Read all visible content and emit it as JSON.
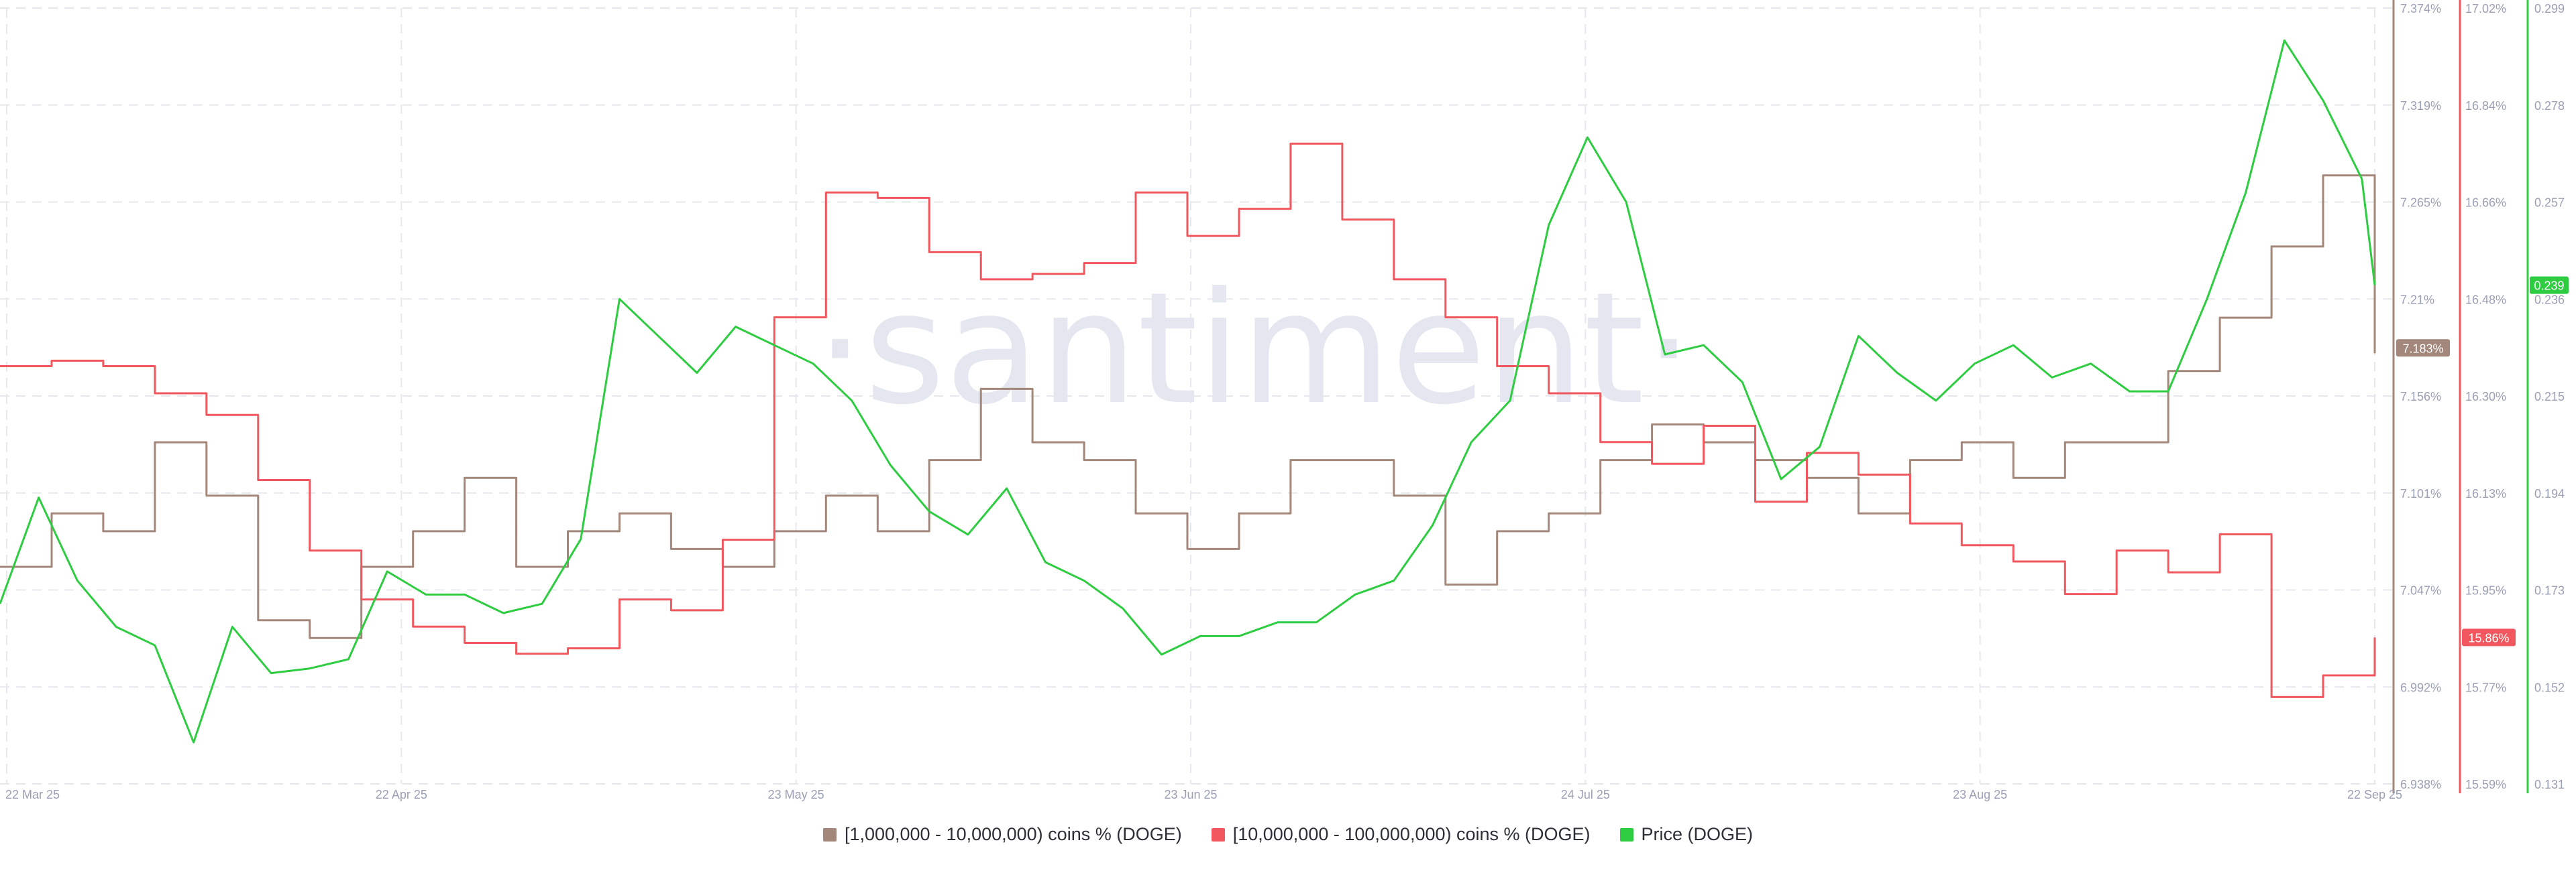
{
  "watermark": "·santiment·",
  "legend": [
    {
      "label": "[1,000,000 - 10,000,000) coins % (DOGE)",
      "color": "#a3877a"
    },
    {
      "label": "[10,000,000 - 100,000,000) coins % (DOGE)",
      "color": "#f0575e"
    },
    {
      "label": "Price (DOGE)",
      "color": "#2ecc40"
    }
  ],
  "colors": {
    "grid": "#e6e8ee",
    "axis_text": "#9a9fb3",
    "series1": "#a3877a",
    "series2": "#f0575e",
    "series3": "#2ecc40"
  },
  "chart_data": {
    "type": "line",
    "grid": true,
    "x_ticks": [
      "22 Mar 25",
      "22 Apr 25",
      "23 May 25",
      "23 Jun 25",
      "24 Jul 25",
      "23 Aug 25",
      "22 Sep 25"
    ],
    "x_range": [
      "2025-03-22",
      "2025-09-22"
    ],
    "axes": [
      {
        "id": "coins_1m_10m",
        "ticks": [
          "7.374%",
          "7.319%",
          "7.265%",
          "7.21%",
          "7.156%",
          "7.101%",
          "7.047%",
          "6.992%",
          "6.938%"
        ],
        "range": [
          6.938,
          7.374
        ],
        "current_value_label": "7.183%",
        "current_value": 7.183
      },
      {
        "id": "coins_10m_100m",
        "ticks": [
          "17.02%",
          "16.84%",
          "16.66%",
          "16.48%",
          "16.30%",
          "16.13%",
          "15.95%",
          "15.77%",
          "15.59%"
        ],
        "range": [
          15.59,
          17.02
        ],
        "current_value_label": "15.86%",
        "current_value": 15.86
      },
      {
        "id": "price",
        "ticks": [
          "0.299",
          "0.278",
          "0.257",
          "0.236",
          "0.215",
          "0.194",
          "0.173",
          "0.152",
          "0.131"
        ],
        "range": [
          0.131,
          0.299
        ],
        "current_value_label": "0.239",
        "current_value": 0.239
      }
    ],
    "series": [
      {
        "name": "[1,000,000 - 10,000,000) coins % (DOGE)",
        "axis": "coins_1m_10m",
        "step": true,
        "x": [
          "2025-03-22",
          "2025-03-26",
          "2025-03-30",
          "2025-04-03",
          "2025-04-07",
          "2025-04-11",
          "2025-04-15",
          "2025-04-19",
          "2025-04-23",
          "2025-04-27",
          "2025-05-01",
          "2025-05-05",
          "2025-05-09",
          "2025-05-13",
          "2025-05-17",
          "2025-05-21",
          "2025-05-25",
          "2025-05-29",
          "2025-06-02",
          "2025-06-06",
          "2025-06-10",
          "2025-06-14",
          "2025-06-18",
          "2025-06-22",
          "2025-06-26",
          "2025-06-30",
          "2025-07-04",
          "2025-07-08",
          "2025-07-12",
          "2025-07-16",
          "2025-07-20",
          "2025-07-24",
          "2025-07-28",
          "2025-08-01",
          "2025-08-05",
          "2025-08-09",
          "2025-08-13",
          "2025-08-17",
          "2025-08-21",
          "2025-08-25",
          "2025-08-29",
          "2025-09-02",
          "2025-09-06",
          "2025-09-10",
          "2025-09-14",
          "2025-09-18",
          "2025-09-22"
        ],
        "values": [
          7.06,
          7.09,
          7.08,
          7.13,
          7.1,
          7.03,
          7.02,
          7.06,
          7.08,
          7.11,
          7.06,
          7.08,
          7.09,
          7.07,
          7.06,
          7.08,
          7.1,
          7.08,
          7.12,
          7.16,
          7.13,
          7.12,
          7.09,
          7.07,
          7.09,
          7.12,
          7.12,
          7.1,
          7.05,
          7.08,
          7.09,
          7.12,
          7.14,
          7.13,
          7.12,
          7.11,
          7.09,
          7.12,
          7.13,
          7.11,
          7.13,
          7.13,
          7.17,
          7.2,
          7.24,
          7.28,
          7.18
        ]
      },
      {
        "name": "[10,000,000 - 100,000,000) coins % (DOGE)",
        "axis": "coins_10m_100m",
        "step": true,
        "x": [
          "2025-03-22",
          "2025-03-26",
          "2025-03-30",
          "2025-04-03",
          "2025-04-07",
          "2025-04-11",
          "2025-04-15",
          "2025-04-19",
          "2025-04-23",
          "2025-04-27",
          "2025-05-01",
          "2025-05-05",
          "2025-05-09",
          "2025-05-13",
          "2025-05-17",
          "2025-05-21",
          "2025-05-25",
          "2025-05-29",
          "2025-06-02",
          "2025-06-06",
          "2025-06-10",
          "2025-06-14",
          "2025-06-18",
          "2025-06-22",
          "2025-06-26",
          "2025-06-30",
          "2025-07-04",
          "2025-07-08",
          "2025-07-12",
          "2025-07-16",
          "2025-07-20",
          "2025-07-24",
          "2025-07-28",
          "2025-08-01",
          "2025-08-05",
          "2025-08-09",
          "2025-08-13",
          "2025-08-17",
          "2025-08-21",
          "2025-08-25",
          "2025-08-29",
          "2025-09-02",
          "2025-09-06",
          "2025-09-10",
          "2025-09-14",
          "2025-09-18",
          "2025-09-22"
        ],
        "values": [
          16.36,
          16.37,
          16.36,
          16.31,
          16.27,
          16.15,
          16.02,
          15.93,
          15.88,
          15.85,
          15.83,
          15.84,
          15.93,
          15.91,
          16.04,
          16.45,
          16.68,
          16.67,
          16.57,
          16.52,
          16.53,
          16.55,
          16.68,
          16.6,
          16.65,
          16.77,
          16.63,
          16.52,
          16.45,
          16.36,
          16.31,
          16.22,
          16.18,
          16.25,
          16.11,
          16.2,
          16.16,
          16.07,
          16.03,
          16.0,
          15.94,
          16.02,
          15.98,
          16.05,
          15.75,
          15.79,
          15.86
        ]
      },
      {
        "name": "Price (DOGE)",
        "axis": "price",
        "step": false,
        "x": [
          "2025-03-22",
          "2025-03-25",
          "2025-03-28",
          "2025-03-31",
          "2025-04-03",
          "2025-04-06",
          "2025-04-09",
          "2025-04-12",
          "2025-04-15",
          "2025-04-18",
          "2025-04-21",
          "2025-04-24",
          "2025-04-27",
          "2025-04-30",
          "2025-05-03",
          "2025-05-06",
          "2025-05-09",
          "2025-05-12",
          "2025-05-15",
          "2025-05-18",
          "2025-05-21",
          "2025-05-24",
          "2025-05-27",
          "2025-05-30",
          "2025-06-02",
          "2025-06-05",
          "2025-06-08",
          "2025-06-11",
          "2025-06-14",
          "2025-06-17",
          "2025-06-20",
          "2025-06-23",
          "2025-06-26",
          "2025-06-29",
          "2025-07-02",
          "2025-07-05",
          "2025-07-08",
          "2025-07-11",
          "2025-07-14",
          "2025-07-17",
          "2025-07-20",
          "2025-07-23",
          "2025-07-26",
          "2025-07-29",
          "2025-08-01",
          "2025-08-04",
          "2025-08-07",
          "2025-08-10",
          "2025-08-13",
          "2025-08-16",
          "2025-08-19",
          "2025-08-22",
          "2025-08-25",
          "2025-08-28",
          "2025-08-31",
          "2025-09-03",
          "2025-09-06",
          "2025-09-09",
          "2025-09-12",
          "2025-09-15",
          "2025-09-18",
          "2025-09-21",
          "2025-09-22"
        ],
        "values": [
          0.17,
          0.193,
          0.175,
          0.165,
          0.161,
          0.14,
          0.165,
          0.155,
          0.156,
          0.158,
          0.177,
          0.172,
          0.172,
          0.168,
          0.17,
          0.184,
          0.236,
          0.228,
          0.22,
          0.23,
          0.226,
          0.222,
          0.214,
          0.2,
          0.19,
          0.185,
          0.195,
          0.179,
          0.175,
          0.169,
          0.159,
          0.163,
          0.163,
          0.166,
          0.166,
          0.172,
          0.175,
          0.187,
          0.205,
          0.214,
          0.252,
          0.271,
          0.257,
          0.224,
          0.226,
          0.218,
          0.197,
          0.204,
          0.228,
          0.22,
          0.214,
          0.222,
          0.226,
          0.219,
          0.222,
          0.216,
          0.216,
          0.236,
          0.259,
          0.292,
          0.279,
          0.262,
          0.239
        ]
      }
    ]
  }
}
